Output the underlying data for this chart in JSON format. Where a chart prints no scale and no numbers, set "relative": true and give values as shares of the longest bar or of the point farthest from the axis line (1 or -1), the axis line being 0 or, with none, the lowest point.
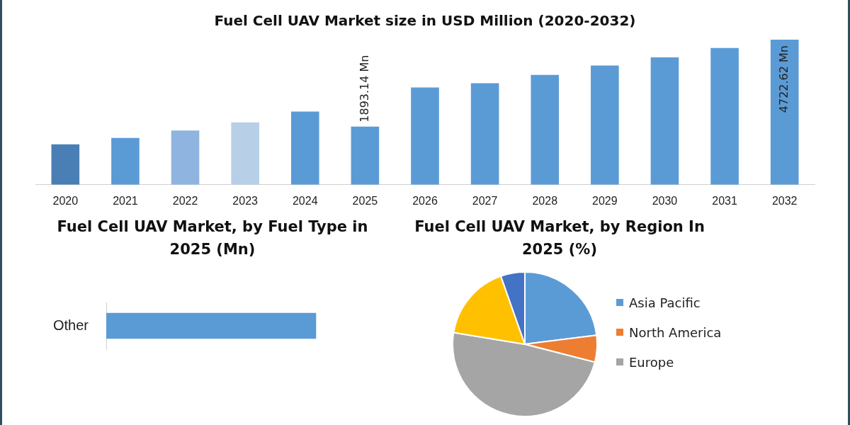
{
  "chart_data": [
    {
      "type": "bar",
      "title": "Fuel Cell UAV Market size in USD Million (2020-2032)",
      "categories": [
        "2020",
        "2021",
        "2022",
        "2023",
        "2024",
        "2025",
        "2026",
        "2027",
        "2028",
        "2029",
        "2030",
        "2031",
        "2032"
      ],
      "values": [
        1313,
        1521,
        1766,
        2031,
        2380,
        1893.14,
        3164,
        3306,
        3575,
        3882,
        4146,
        4453,
        4722.62
      ],
      "colors": [
        "#4a7fb5",
        "#5b9bd5",
        "#8fb4e0",
        "#b8cfe8",
        "#5b9bd5",
        "#5b9bd5",
        "#5b9bd5",
        "#5b9bd5",
        "#5b9bd5",
        "#5b9bd5",
        "#5b9bd5",
        "#5b9bd5",
        "#5b9bd5"
      ],
      "value_labels": [
        null,
        null,
        null,
        null,
        null,
        "1893.14 Mn",
        null,
        null,
        null,
        null,
        null,
        null,
        "4722.62 Mn"
      ]
    },
    {
      "type": "bar",
      "title": "Fuel Cell UAV Market, by Fuel Type in 2025 (Mn)",
      "orientation": "horizontal",
      "relative": true,
      "categories": [
        "Other"
      ],
      "values": [
        1
      ],
      "colors": [
        "#5b9bd5"
      ]
    },
    {
      "type": "pie",
      "title": "Fuel Cell UAV Market, by Region In 2025 (%)",
      "legend": "right",
      "categories": [
        "Asia Pacific",
        "North America",
        "Europe",
        null,
        null
      ],
      "values": [
        23,
        6,
        48.6,
        17,
        5.4
      ],
      "colors": [
        "#5b9bd5",
        "#ed7d31",
        "#a5a5a5",
        "#ffc000",
        "#4472c4"
      ]
    }
  ]
}
